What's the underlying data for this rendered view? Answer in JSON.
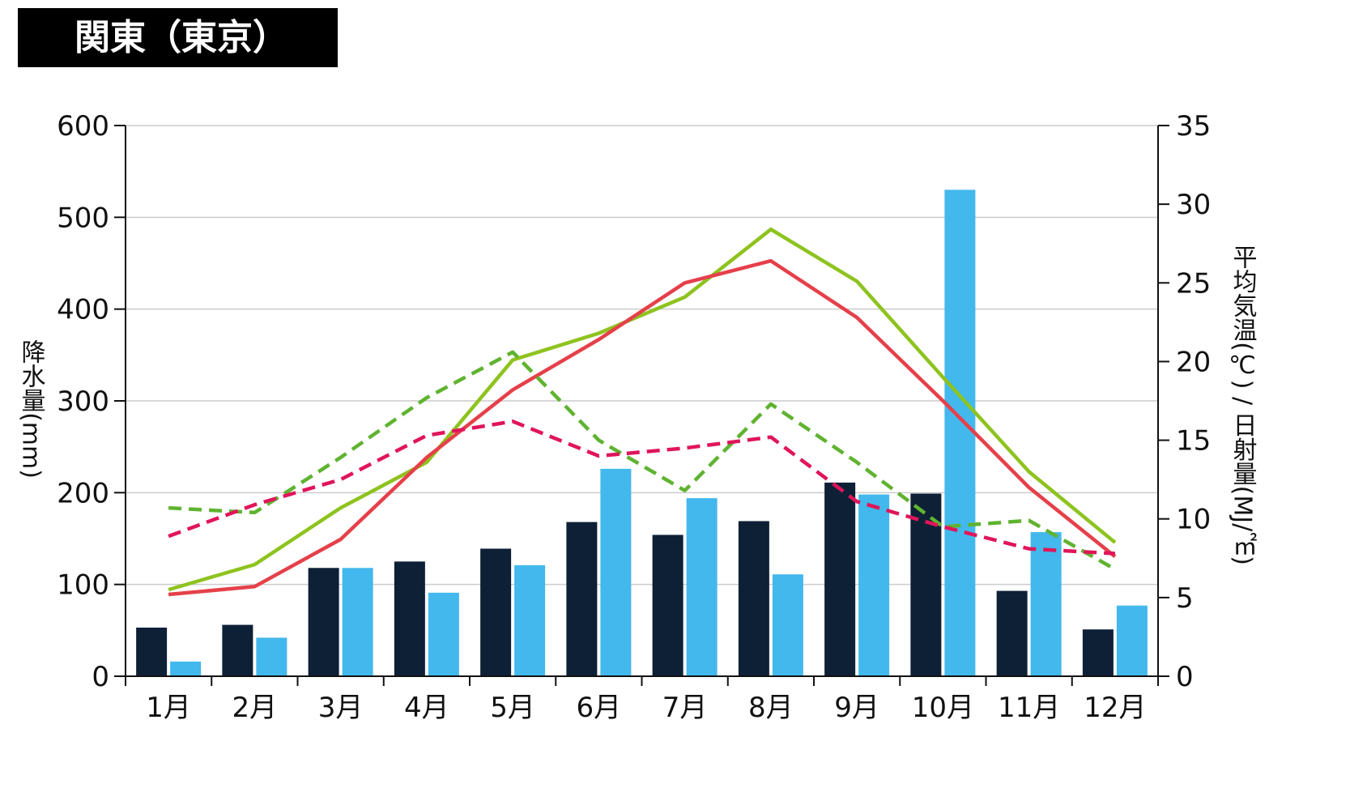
{
  "chart_data": {
    "type": "bar",
    "title": "関東（東京）",
    "categories": [
      "1月",
      "2月",
      "3月",
      "4月",
      "5月",
      "6月",
      "7月",
      "8月",
      "9月",
      "10月",
      "11月",
      "12月"
    ],
    "y_left": {
      "label": "降水量(mm)",
      "range": [
        0,
        600
      ],
      "ticks": [
        "0",
        "100",
        "200",
        "300",
        "400",
        "500",
        "600"
      ]
    },
    "y_right": {
      "label": "平均気温(℃) / 日射量(MJ/㎡)",
      "range": [
        0,
        35
      ],
      "ticks": [
        "0",
        "5",
        "10",
        "15",
        "20",
        "25",
        "30",
        "35"
      ]
    },
    "grid": true,
    "bar_series": [
      {
        "color": "#0e2036",
        "values": [
          53,
          56,
          118,
          125,
          139,
          168,
          154,
          169,
          211,
          199,
          93,
          51
        ]
      },
      {
        "color": "#43b8ec",
        "values": [
          16,
          42,
          118,
          91,
          121,
          226,
          194,
          111,
          198,
          530,
          157,
          77
        ]
      }
    ],
    "line_series": [
      {
        "color": "#8ec31f",
        "dashed": false,
        "values": [
          5.5,
          7.1,
          10.7,
          13.6,
          20.1,
          21.8,
          24.1,
          28.4,
          25.1,
          19.0,
          13.0,
          8.5
        ]
      },
      {
        "color": "#e5404a",
        "dashed": false,
        "values": [
          5.2,
          5.7,
          8.7,
          13.9,
          18.2,
          21.4,
          25.0,
          26.4,
          22.8,
          17.5,
          12.0,
          7.6
        ]
      },
      {
        "color": "#5fb330",
        "dashed": true,
        "values": [
          10.7,
          10.4,
          13.9,
          17.7,
          20.6,
          15.0,
          11.8,
          17.3,
          13.6,
          9.5,
          9.9,
          6.8
        ]
      },
      {
        "color": "#e0155a",
        "dashed": true,
        "values": [
          8.9,
          10.9,
          12.5,
          15.3,
          16.2,
          14.0,
          14.5,
          15.2,
          11.1,
          9.5,
          8.1,
          7.8
        ]
      }
    ]
  }
}
